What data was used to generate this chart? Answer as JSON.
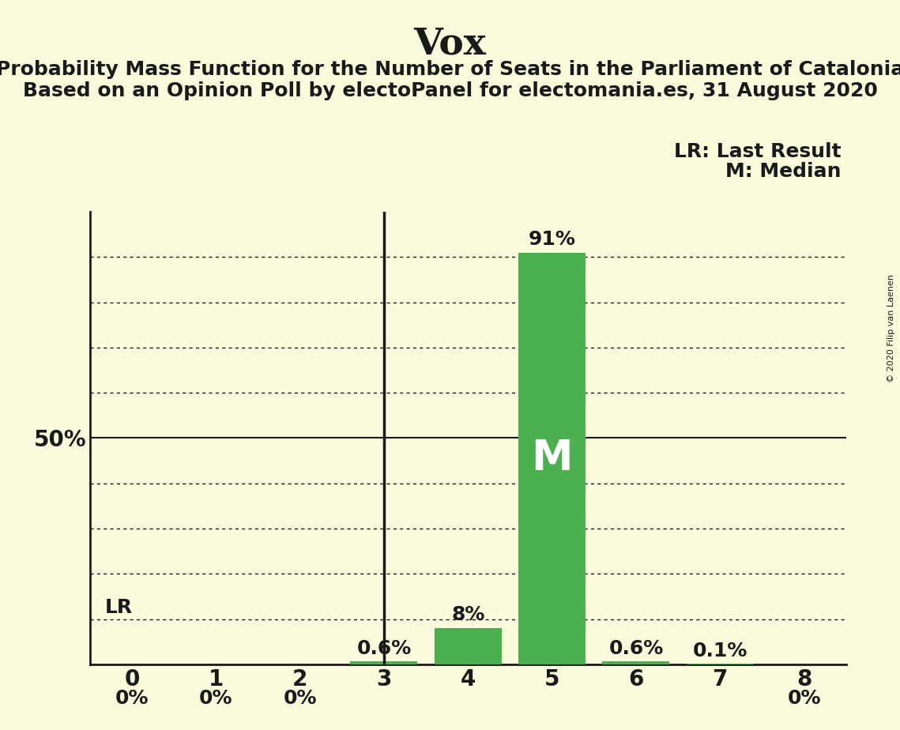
{
  "title": "Vox",
  "subtitle1": "Probability Mass Function for the Number of Seats in the Parliament of Catalonia",
  "subtitle2": "Based on an Opinion Poll by electoPanel for electomania.es, 31 August 2020",
  "copyright": "© 2020 Filip van Laenen",
  "seats": [
    0,
    1,
    2,
    3,
    4,
    5,
    6,
    7,
    8
  ],
  "probabilities": [
    0.0,
    0.0,
    0.0,
    0.006,
    0.08,
    0.91,
    0.006,
    0.001,
    0.0
  ],
  "bar_color": "#4caf50",
  "median_seat": 5,
  "lr_seat": 3,
  "lr_label": "LR",
  "median_label": "M",
  "legend_lr": "LR: Last Result",
  "legend_m": "M: Median",
  "ylabel_50": "50%",
  "background_color": "#fafadc",
  "title_fontsize": 34,
  "subtitle_fontsize": 18,
  "label_fontsize": 18,
  "tick_fontsize": 20,
  "ylim": [
    0,
    1.0
  ],
  "xlim": [
    -0.5,
    8.5
  ]
}
